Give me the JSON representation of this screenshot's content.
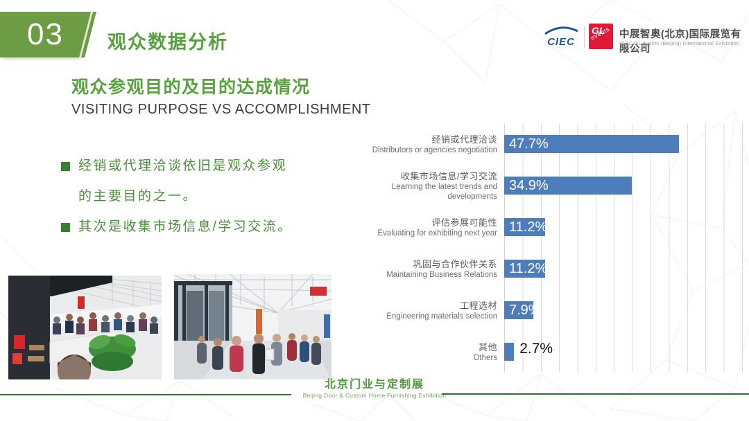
{
  "slide": {
    "section_number": "03",
    "section_title": "观众数据分析",
    "heading_cn": "观众参观目的及目的达成情况",
    "heading_en": "VISITING PURPOSE VS ACCOMPLISHMENT",
    "bullets": [
      "经销或代理洽谈依旧是观众参观的主要目的之一。",
      "其次是收集市场信息/学习交流。"
    ]
  },
  "logo": {
    "ciec_text": "CIEC",
    "gl_text_top": "GL",
    "gl_text_bottom": "events",
    "company_cn": "中展智奥(北京)国际展览有限公司",
    "company_en": "CIEC GL events (Beijing) International Exhibition Co., Ltd."
  },
  "footer": {
    "title_cn": "北京门业与定制展",
    "title_en": "Beijing Door & Custom Home Furnishing Exhibition"
  },
  "colors": {
    "accent_green": "#57a13e",
    "badge_green": "#6d9c44",
    "bullet_green": "#4c8c3e",
    "bar_blue": "#4d7dbb",
    "logo_red": "#e31837",
    "ciec_blue": "#1a57a0",
    "footer_line_green": "#33702f",
    "gridline_gray": "#dcdcdc"
  },
  "chart_data": {
    "type": "bar",
    "orientation": "horizontal",
    "title": "",
    "xlabel": "",
    "ylabel": "",
    "xlim": [
      0,
      65
    ],
    "gridline_step": 5,
    "grid": true,
    "legend": false,
    "categories": [
      {
        "cn": "经销或代理洽谈",
        "en": "Distributors or agencies negotiation"
      },
      {
        "cn": "收集市场信息/学习交流",
        "en": "Learning the latest trends and developments"
      },
      {
        "cn": "评估参展可能性",
        "en": "Evaluating for exhibiting next year"
      },
      {
        "cn": "巩固与合作伙伴关系",
        "en": "Maintaining Business Relations"
      },
      {
        "cn": "工程选材",
        "en": "Engineering materials selection"
      },
      {
        "cn": "其他",
        "en": "Others"
      }
    ],
    "values": [
      47.7,
      34.9,
      11.2,
      11.2,
      7.9,
      2.7
    ],
    "value_labels": [
      "47.7%",
      "34.9%",
      "11.2%",
      "11.2%",
      "7.9%",
      "2.7%"
    ],
    "bar_color": "#4d7dbb"
  }
}
